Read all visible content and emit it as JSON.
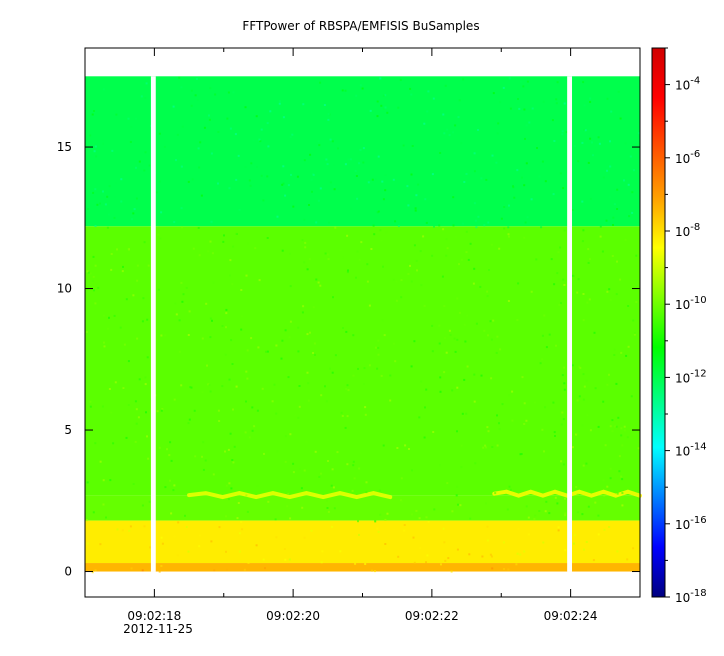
{
  "chart_data": {
    "type": "heatmap",
    "title": "FFTPower of RBSPA/EMFISIS  BuSamples",
    "xlabel": "",
    "ylabel": "",
    "x_ticks": [
      "09:02:18",
      "09:02:20",
      "09:02:22",
      "09:02:24"
    ],
    "x_tick_seconds": [
      18,
      20,
      22,
      24
    ],
    "x_minor_tick_seconds": [
      19,
      21,
      23,
      25
    ],
    "xlim_seconds": [
      17.0,
      25.0
    ],
    "date_label": "2012-11-25",
    "y_ticks": [
      0,
      5,
      10,
      15
    ],
    "ylim": [
      -0.9,
      18.5
    ],
    "data_top": 17.5,
    "colorbar": {
      "scale": "log",
      "range": [
        1e-18,
        0.001
      ],
      "tick_exponents": [
        -18,
        -16,
        -14,
        -12,
        -10,
        -8,
        -6,
        -4
      ],
      "tick_base": "10",
      "colors": [
        "#00007f",
        "#0000ff",
        "#007fff",
        "#00ffff",
        "#00ff7f",
        "#00ff00",
        "#7fff00",
        "#ffff00",
        "#ffa000",
        "#ff5000",
        "#ff0000",
        "#d00000"
      ]
    },
    "gaps_seconds": [
      [
        17.95,
        18.02
      ],
      [
        23.95,
        24.02
      ]
    ],
    "bands": [
      {
        "y_from": 12.2,
        "y_to": 17.5,
        "log_power": -12.0
      },
      {
        "y_from": 2.7,
        "y_to": 12.2,
        "log_power": -10.2
      },
      {
        "y_from": 1.8,
        "y_to": 2.7,
        "log_power": -10.1
      },
      {
        "y_from": 0.3,
        "y_to": 1.8,
        "log_power": -8.2
      },
      {
        "y_from": 0.0,
        "y_to": 0.3,
        "log_power": -7.4
      }
    ],
    "features": [
      {
        "x_from": 18.5,
        "x_to": 21.4,
        "y": 2.7,
        "log_power": -8.6
      },
      {
        "x_from": 22.9,
        "x_to": 25.0,
        "y": 2.75,
        "log_power": -8.4
      }
    ]
  }
}
